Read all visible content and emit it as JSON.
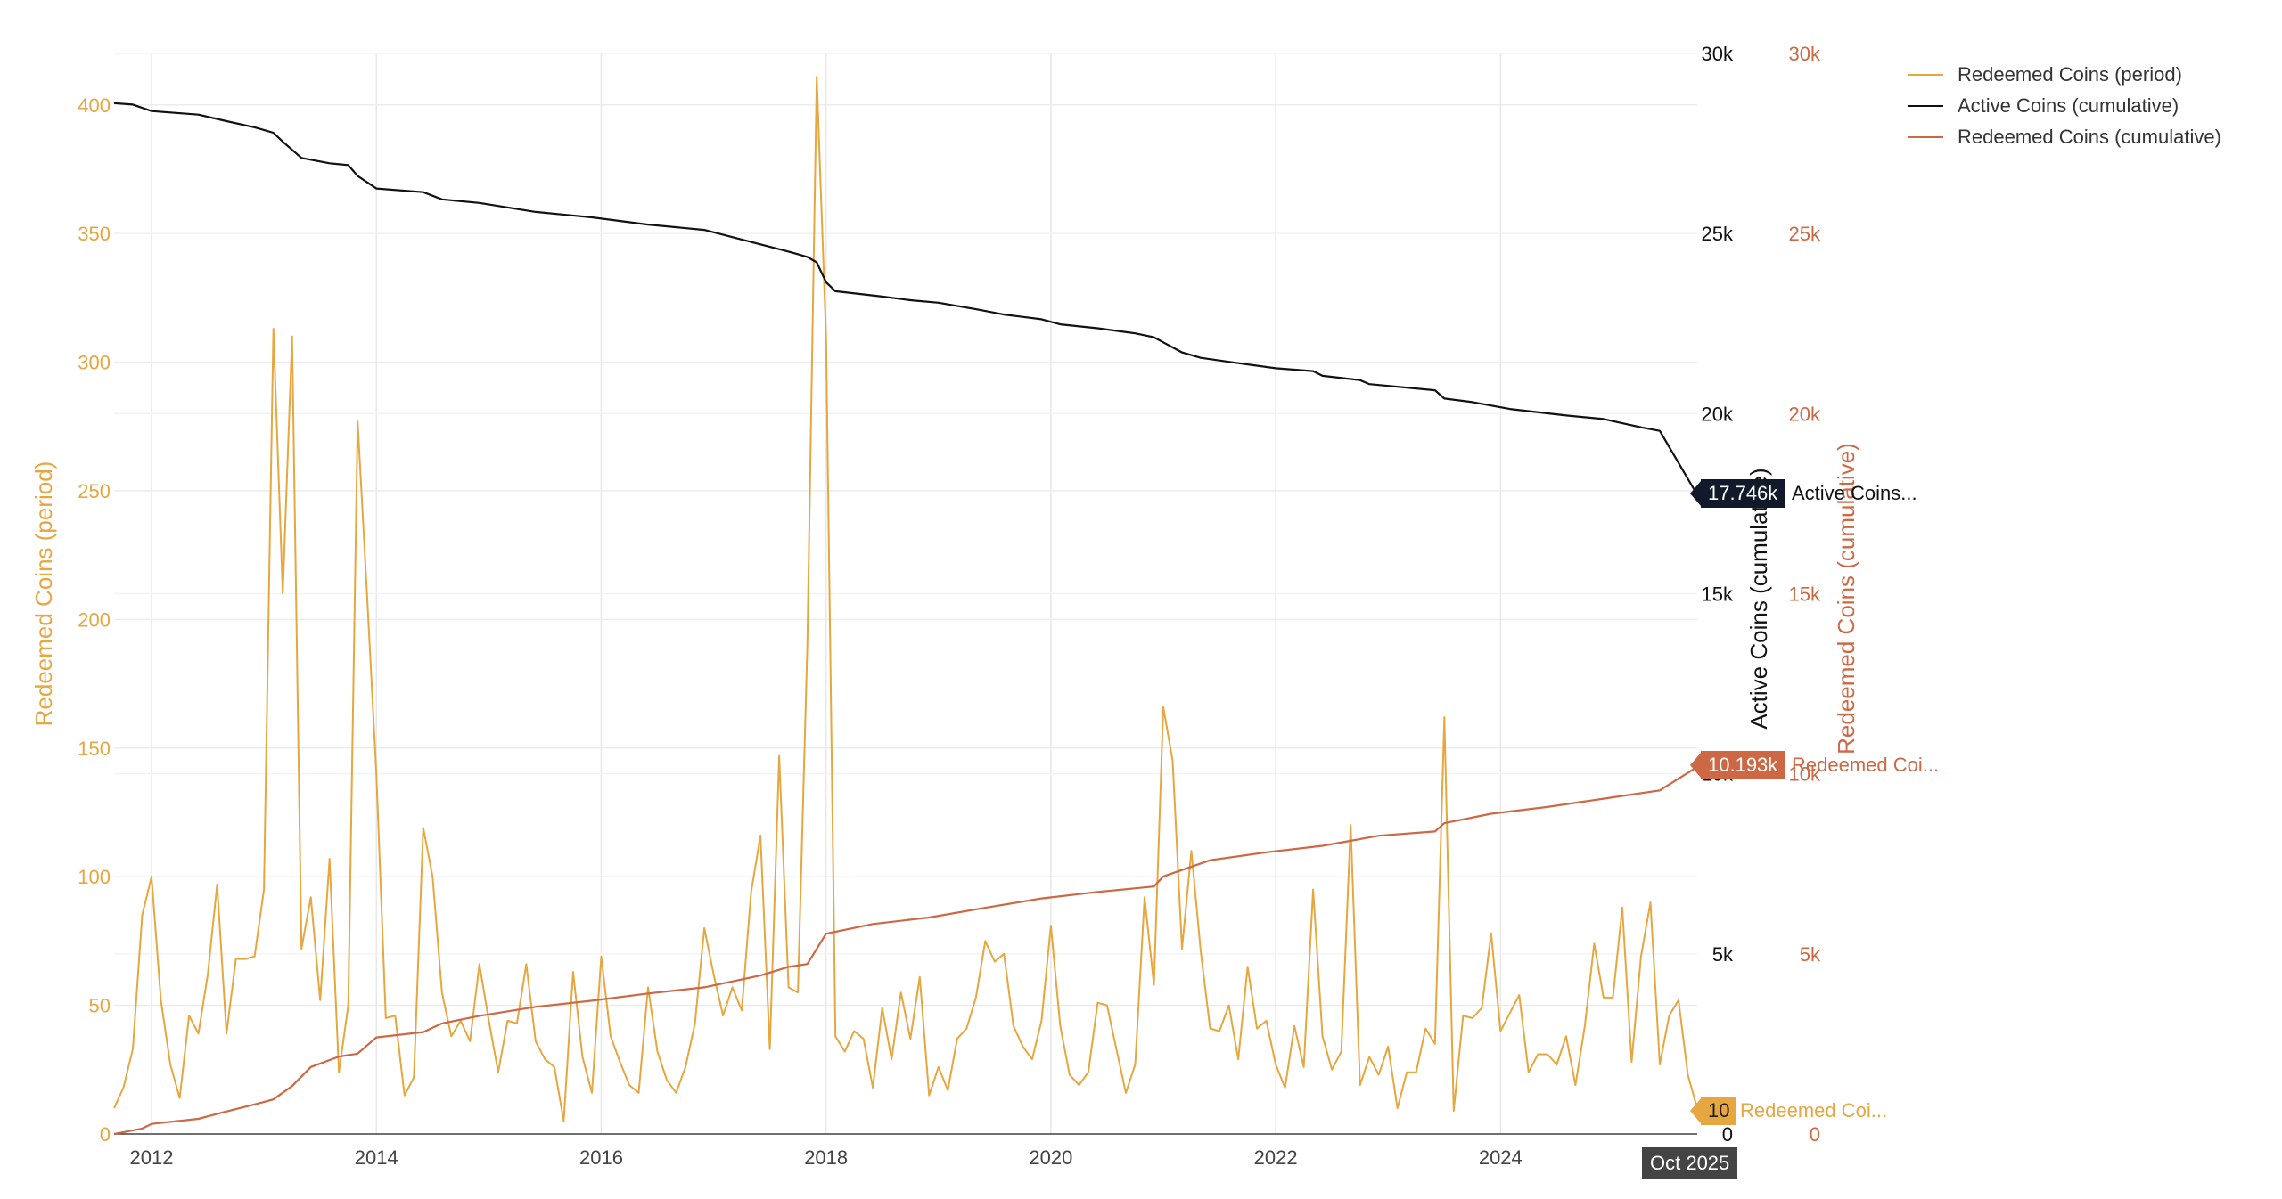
{
  "chart_data": {
    "type": "line",
    "x_range": [
      "2011-09",
      "2025-10"
    ],
    "x_ticks": [
      "2012",
      "2014",
      "2016",
      "2018",
      "2020",
      "2022",
      "2024"
    ],
    "y_left": {
      "label": "Redeemed Coins (period)",
      "range": [
        0,
        420
      ],
      "ticks": [
        "0",
        "50",
        "100",
        "150",
        "200",
        "250",
        "300",
        "350",
        "400"
      ],
      "color": "#e6a640"
    },
    "y_right1": {
      "label": "Active Coins (cumulative)",
      "range": [
        0,
        30000
      ],
      "ticks": [
        "0",
        "5k",
        "10k",
        "15k",
        "20k",
        "25k",
        "30k"
      ],
      "color": "#111111"
    },
    "y_right2": {
      "label": "Redeemed Coins (cumulative)",
      "range": [
        0,
        30000
      ],
      "ticks": [
        "0",
        "5k",
        "10k",
        "15k",
        "20k",
        "25k",
        "30k"
      ],
      "color": "#cd6845"
    },
    "grid": true,
    "legend_position": "top-right",
    "series": [
      {
        "name": "Redeemed Coins (period)",
        "axis": "left",
        "color": "#e6a640",
        "points": [
          [
            "2011-09",
            10
          ],
          [
            "2011-10",
            18
          ],
          [
            "2011-11",
            33
          ],
          [
            "2011-12",
            85
          ],
          [
            "2012-01",
            100
          ],
          [
            "2012-02",
            52
          ],
          [
            "2012-03",
            27
          ],
          [
            "2012-04",
            14
          ],
          [
            "2012-05",
            46
          ],
          [
            "2012-06",
            39
          ],
          [
            "2012-07",
            62
          ],
          [
            "2012-08",
            97
          ],
          [
            "2012-09",
            39
          ],
          [
            "2012-10",
            68
          ],
          [
            "2012-11",
            68
          ],
          [
            "2012-12",
            69
          ],
          [
            "2013-01",
            95
          ],
          [
            "2013-02",
            313
          ],
          [
            "2013-03",
            210
          ],
          [
            "2013-04",
            310
          ],
          [
            "2013-05",
            72
          ],
          [
            "2013-06",
            92
          ],
          [
            "2013-07",
            52
          ],
          [
            "2013-08",
            107
          ],
          [
            "2013-09",
            24
          ],
          [
            "2013-10",
            50
          ],
          [
            "2013-11",
            277
          ],
          [
            "2013-12",
            210
          ],
          [
            "2014-01",
            140
          ],
          [
            "2014-02",
            45
          ],
          [
            "2014-03",
            46
          ],
          [
            "2014-04",
            15
          ],
          [
            "2014-05",
            22
          ],
          [
            "2014-06",
            119
          ],
          [
            "2014-07",
            100
          ],
          [
            "2014-08",
            55
          ],
          [
            "2014-09",
            38
          ],
          [
            "2014-10",
            44
          ],
          [
            "2014-11",
            36
          ],
          [
            "2014-12",
            66
          ],
          [
            "2015-01",
            44
          ],
          [
            "2015-02",
            24
          ],
          [
            "2015-03",
            44
          ],
          [
            "2015-04",
            43
          ],
          [
            "2015-05",
            66
          ],
          [
            "2015-06",
            36
          ],
          [
            "2015-07",
            29
          ],
          [
            "2015-08",
            26
          ],
          [
            "2015-09",
            5
          ],
          [
            "2015-10",
            63
          ],
          [
            "2015-11",
            30
          ],
          [
            "2015-12",
            16
          ],
          [
            "2016-01",
            69
          ],
          [
            "2016-02",
            38
          ],
          [
            "2016-03",
            28
          ],
          [
            "2016-04",
            19
          ],
          [
            "2016-05",
            16
          ],
          [
            "2016-06",
            57
          ],
          [
            "2016-07",
            32
          ],
          [
            "2016-08",
            21
          ],
          [
            "2016-09",
            16
          ],
          [
            "2016-10",
            26
          ],
          [
            "2016-11",
            43
          ],
          [
            "2016-12",
            80
          ],
          [
            "2017-01",
            62
          ],
          [
            "2017-02",
            46
          ],
          [
            "2017-03",
            57
          ],
          [
            "2017-04",
            48
          ],
          [
            "2017-05",
            94
          ],
          [
            "2017-06",
            116
          ],
          [
            "2017-07",
            33
          ],
          [
            "2017-08",
            147
          ],
          [
            "2017-09",
            57
          ],
          [
            "2017-10",
            55
          ],
          [
            "2017-11",
            190
          ],
          [
            "2017-12",
            411
          ],
          [
            "2018-01",
            310
          ],
          [
            "2018-02",
            38
          ],
          [
            "2018-03",
            32
          ],
          [
            "2018-04",
            40
          ],
          [
            "2018-05",
            37
          ],
          [
            "2018-06",
            18
          ],
          [
            "2018-07",
            49
          ],
          [
            "2018-08",
            29
          ],
          [
            "2018-09",
            55
          ],
          [
            "2018-10",
            37
          ],
          [
            "2018-11",
            61
          ],
          [
            "2018-12",
            15
          ],
          [
            "2019-01",
            26
          ],
          [
            "2019-02",
            17
          ],
          [
            "2019-03",
            37
          ],
          [
            "2019-04",
            41
          ],
          [
            "2019-05",
            53
          ],
          [
            "2019-06",
            75
          ],
          [
            "2019-07",
            67
          ],
          [
            "2019-08",
            70
          ],
          [
            "2019-09",
            42
          ],
          [
            "2019-10",
            34
          ],
          [
            "2019-11",
            29
          ],
          [
            "2019-12",
            44
          ],
          [
            "2020-01",
            81
          ],
          [
            "2020-02",
            42
          ],
          [
            "2020-03",
            23
          ],
          [
            "2020-04",
            19
          ],
          [
            "2020-05",
            24
          ],
          [
            "2020-06",
            51
          ],
          [
            "2020-07",
            50
          ],
          [
            "2020-08",
            33
          ],
          [
            "2020-09",
            16
          ],
          [
            "2020-10",
            27
          ],
          [
            "2020-11",
            92
          ],
          [
            "2020-12",
            58
          ],
          [
            "2021-01",
            166
          ],
          [
            "2021-02",
            145
          ],
          [
            "2021-03",
            72
          ],
          [
            "2021-04",
            110
          ],
          [
            "2021-05",
            71
          ],
          [
            "2021-06",
            41
          ],
          [
            "2021-07",
            40
          ],
          [
            "2021-08",
            50
          ],
          [
            "2021-09",
            29
          ],
          [
            "2021-10",
            65
          ],
          [
            "2021-11",
            41
          ],
          [
            "2021-12",
            44
          ],
          [
            "2022-01",
            27
          ],
          [
            "2022-02",
            18
          ],
          [
            "2022-03",
            42
          ],
          [
            "2022-04",
            26
          ],
          [
            "2022-05",
            95
          ],
          [
            "2022-06",
            38
          ],
          [
            "2022-07",
            25
          ],
          [
            "2022-08",
            32
          ],
          [
            "2022-09",
            120
          ],
          [
            "2022-10",
            19
          ],
          [
            "2022-11",
            30
          ],
          [
            "2022-12",
            23
          ],
          [
            "2023-01",
            34
          ],
          [
            "2023-02",
            10
          ],
          [
            "2023-03",
            24
          ],
          [
            "2023-04",
            24
          ],
          [
            "2023-05",
            41
          ],
          [
            "2023-06",
            35
          ],
          [
            "2023-07",
            162
          ],
          [
            "2023-08",
            9
          ],
          [
            "2023-09",
            46
          ],
          [
            "2023-10",
            45
          ],
          [
            "2023-11",
            49
          ],
          [
            "2023-12",
            78
          ],
          [
            "2024-01",
            40
          ],
          [
            "2024-02",
            47
          ],
          [
            "2024-03",
            54
          ],
          [
            "2024-04",
            24
          ],
          [
            "2024-05",
            31
          ],
          [
            "2024-06",
            31
          ],
          [
            "2024-07",
            27
          ],
          [
            "2024-08",
            38
          ],
          [
            "2024-09",
            19
          ],
          [
            "2024-10",
            42
          ],
          [
            "2024-11",
            74
          ],
          [
            "2024-12",
            53
          ],
          [
            "2025-01",
            53
          ],
          [
            "2025-02",
            88
          ],
          [
            "2025-03",
            28
          ],
          [
            "2025-04",
            69
          ],
          [
            "2025-05",
            90
          ],
          [
            "2025-06",
            27
          ],
          [
            "2025-07",
            46
          ],
          [
            "2025-08",
            52
          ],
          [
            "2025-09",
            23
          ],
          [
            "2025-10",
            10
          ]
        ]
      },
      {
        "name": "Active Coins (cumulative)",
        "axis": "right",
        "color": "#111111",
        "points": [
          [
            "2011-09",
            28620
          ],
          [
            "2011-11",
            28580
          ],
          [
            "2012-01",
            28400
          ],
          [
            "2012-06",
            28300
          ],
          [
            "2012-09",
            28120
          ],
          [
            "2012-12",
            27950
          ],
          [
            "2013-02",
            27800
          ],
          [
            "2013-03",
            27550
          ],
          [
            "2013-05",
            27100
          ],
          [
            "2013-08",
            26950
          ],
          [
            "2013-10",
            26900
          ],
          [
            "2013-11",
            26600
          ],
          [
            "2014-01",
            26250
          ],
          [
            "2014-06",
            26150
          ],
          [
            "2014-08",
            25950
          ],
          [
            "2014-12",
            25850
          ],
          [
            "2015-06",
            25600
          ],
          [
            "2015-12",
            25450
          ],
          [
            "2016-06",
            25250
          ],
          [
            "2016-12",
            25100
          ],
          [
            "2017-06",
            24700
          ],
          [
            "2017-09",
            24500
          ],
          [
            "2017-11",
            24350
          ],
          [
            "2017-12",
            24200
          ],
          [
            "2018-01",
            23650
          ],
          [
            "2018-02",
            23400
          ],
          [
            "2018-07",
            23250
          ],
          [
            "2018-10",
            23150
          ],
          [
            "2019-01",
            23080
          ],
          [
            "2019-05",
            22900
          ],
          [
            "2019-08",
            22750
          ],
          [
            "2019-12",
            22620
          ],
          [
            "2020-02",
            22480
          ],
          [
            "2020-06",
            22370
          ],
          [
            "2020-10",
            22230
          ],
          [
            "2020-12",
            22120
          ],
          [
            "2021-01",
            21980
          ],
          [
            "2021-03",
            21700
          ],
          [
            "2021-05",
            21550
          ],
          [
            "2021-09",
            21400
          ],
          [
            "2022-01",
            21260
          ],
          [
            "2022-05",
            21180
          ],
          [
            "2022-06",
            21050
          ],
          [
            "2022-10",
            20930
          ],
          [
            "2022-11",
            20820
          ],
          [
            "2023-06",
            20650
          ],
          [
            "2023-07",
            20420
          ],
          [
            "2023-10",
            20320
          ],
          [
            "2024-02",
            20130
          ],
          [
            "2024-08",
            19950
          ],
          [
            "2024-12",
            19850
          ],
          [
            "2025-04",
            19620
          ],
          [
            "2025-06",
            19520
          ],
          [
            "2025-10",
            17746
          ]
        ]
      },
      {
        "name": "Redeemed Coins (cumulative)",
        "axis": "right2",
        "color": "#cd6845",
        "points": [
          [
            "2011-09",
            0
          ],
          [
            "2011-12",
            150
          ],
          [
            "2012-01",
            280
          ],
          [
            "2012-06",
            420
          ],
          [
            "2012-08",
            560
          ],
          [
            "2012-12",
            820
          ],
          [
            "2013-02",
            960
          ],
          [
            "2013-04",
            1330
          ],
          [
            "2013-06",
            1860
          ],
          [
            "2013-09",
            2150
          ],
          [
            "2013-11",
            2230
          ],
          [
            "2014-01",
            2680
          ],
          [
            "2014-06",
            2830
          ],
          [
            "2014-08",
            3070
          ],
          [
            "2014-12",
            3280
          ],
          [
            "2015-06",
            3530
          ],
          [
            "2015-12",
            3700
          ],
          [
            "2016-06",
            3900
          ],
          [
            "2016-12",
            4070
          ],
          [
            "2017-06",
            4400
          ],
          [
            "2017-09",
            4640
          ],
          [
            "2017-11",
            4720
          ],
          [
            "2018-01",
            5560
          ],
          [
            "2018-06",
            5830
          ],
          [
            "2018-12",
            6010
          ],
          [
            "2019-06",
            6280
          ],
          [
            "2019-12",
            6540
          ],
          [
            "2020-06",
            6720
          ],
          [
            "2020-12",
            6870
          ],
          [
            "2021-01",
            7150
          ],
          [
            "2021-06",
            7600
          ],
          [
            "2021-12",
            7820
          ],
          [
            "2022-06",
            8000
          ],
          [
            "2022-12",
            8280
          ],
          [
            "2023-06",
            8400
          ],
          [
            "2023-07",
            8630
          ],
          [
            "2023-12",
            8890
          ],
          [
            "2024-06",
            9080
          ],
          [
            "2024-12",
            9310
          ],
          [
            "2025-06",
            9540
          ],
          [
            "2025-10",
            10193
          ]
        ]
      }
    ],
    "hover": {
      "x_label": "Oct 2025",
      "values": [
        {
          "series": "Active Coins (cumulative)",
          "value": "17.746k",
          "label": "Active Coins..."
        },
        {
          "series": "Redeemed Coins (cumulative)",
          "value": "10.193k",
          "label": "Redeemed Coi..."
        },
        {
          "series": "Redeemed Coins (period)",
          "value": "10",
          "label": "Redeemed Coi..."
        }
      ]
    }
  },
  "legend": [
    {
      "label": "Redeemed Coins (period)",
      "color": "#e6a640"
    },
    {
      "label": "Active Coins (cumulative)",
      "color": "#111111"
    },
    {
      "label": "Redeemed Coins (cumulative)",
      "color": "#cd6845"
    }
  ]
}
